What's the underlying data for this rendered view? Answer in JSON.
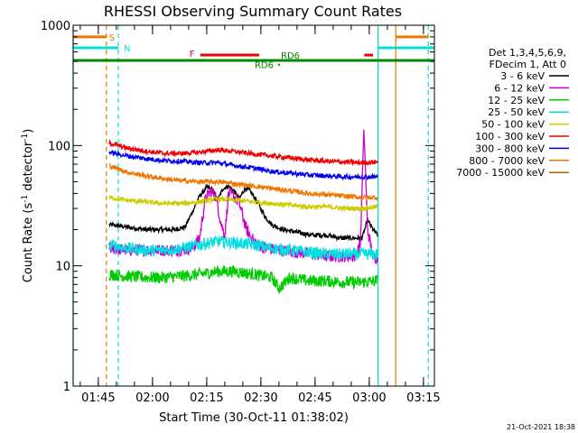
{
  "chart_data": {
    "type": "line",
    "title": "RHESSI Observing Summary Count Rates",
    "xlabel": "Start Time (30-Oct-11 01:38:02)",
    "ylabel_parts": [
      "Count Rate (s",
      "-1",
      " detector",
      "-1",
      ")"
    ],
    "y_scale": "log",
    "ylim": [
      1,
      1000
    ],
    "y_ticks": [
      {
        "value": 1,
        "label": "1"
      },
      {
        "value": 10,
        "label": "10"
      },
      {
        "value": 100,
        "label": "100"
      },
      {
        "value": 1000,
        "label": "1000"
      }
    ],
    "x_unit": "minutes after 01:38:02",
    "xlim": [
      0,
      100
    ],
    "x_ticks": [
      {
        "value": 6.97,
        "label": "01:45"
      },
      {
        "value": 21.97,
        "label": "02:00"
      },
      {
        "value": 36.97,
        "label": "02:15"
      },
      {
        "value": 51.97,
        "label": "02:30"
      },
      {
        "value": 66.97,
        "label": "02:45"
      },
      {
        "value": 81.97,
        "label": "03:00"
      },
      {
        "value": 96.97,
        "label": "03:15"
      }
    ],
    "footer_text": "21-Oct-2021 18:38",
    "legend": {
      "header": [
        "Det 1,3,4,5,6,9,",
        "FDecim 1, Att 0"
      ],
      "entries": [
        {
          "label": "3 - 6 keV",
          "color": "#000000"
        },
        {
          "label": "6 - 12 keV",
          "color": "#cc00cc"
        },
        {
          "label": "12 - 25 keV",
          "color": "#00cc00"
        },
        {
          "label": "25 - 50 keV",
          "color": "#00e0e0"
        },
        {
          "label": "50 - 100 keV",
          "color": "#cccc00"
        },
        {
          "label": "100 - 300 keV",
          "color": "#ee0000"
        },
        {
          "label": "300 - 800 keV",
          "color": "#0000ee"
        },
        {
          "label": "800 - 7000 keV",
          "color": "#ee7700"
        },
        {
          "label": "7000 - 15000 keV",
          "color": "#aa6600"
        }
      ]
    },
    "series": [
      {
        "name": "3 - 6 keV",
        "color": "#000000",
        "x": [
          10,
          15,
          20,
          25,
          28,
          31,
          33,
          35,
          37,
          38.5,
          40,
          41.5,
          43,
          44.5,
          46,
          47.5,
          49,
          51,
          53,
          55,
          58,
          62,
          66,
          70,
          74,
          78,
          80,
          81.5,
          83,
          84.3
        ],
        "y": [
          22,
          21,
          20,
          20,
          20,
          21,
          28,
          38,
          45,
          43,
          35,
          44,
          46,
          42,
          36,
          44,
          42,
          34,
          26,
          22,
          20,
          19,
          18,
          18,
          17,
          17,
          17,
          24,
          20,
          18
        ]
      },
      {
        "name": "6 - 12 keV",
        "color": "#cc00cc",
        "x": [
          10,
          15,
          20,
          25,
          30,
          33,
          35,
          36.5,
          38,
          39.5,
          41,
          42,
          43,
          44.5,
          46,
          48,
          50,
          53,
          57,
          62,
          66,
          70,
          74,
          78,
          79.5,
          80.5,
          81.5,
          83,
          84.3
        ],
        "y": [
          14,
          13.5,
          13.5,
          13.5,
          13.5,
          14,
          17,
          35,
          42,
          38,
          22,
          18,
          40,
          38,
          33,
          20,
          16,
          14,
          13.5,
          13,
          12.5,
          12,
          12,
          12,
          15,
          140,
          20,
          12,
          11.5
        ]
      },
      {
        "name": "12 - 25 keV",
        "color": "#00cc00",
        "x": [
          10,
          15,
          20,
          25,
          30,
          35,
          40,
          45,
          50,
          55,
          57,
          60,
          65,
          70,
          75,
          80,
          84.3
        ],
        "y": [
          8.5,
          8.2,
          8,
          8,
          8.2,
          8.5,
          9,
          9,
          8.5,
          8,
          6.5,
          8,
          7.5,
          7.5,
          7.3,
          7.3,
          7.5
        ]
      },
      {
        "name": "25 - 50 keV",
        "color": "#00e0e0",
        "x": [
          10,
          15,
          20,
          25,
          30,
          35,
          40,
          45,
          50,
          55,
          60,
          65,
          70,
          75,
          80,
          84.3
        ],
        "y": [
          15,
          14,
          13.5,
          13.5,
          14,
          15,
          16,
          15.5,
          15,
          14,
          13.5,
          13,
          12.5,
          12.5,
          12.5,
          12.5
        ]
      },
      {
        "name": "50 - 100 keV",
        "color": "#cccc00",
        "x": [
          10,
          15,
          20,
          25,
          30,
          35,
          40,
          45,
          50,
          55,
          60,
          65,
          70,
          75,
          80,
          84.3
        ],
        "y": [
          37,
          35,
          34,
          33,
          33,
          34,
          36,
          35,
          34,
          33,
          32,
          31,
          31,
          30,
          30,
          31
        ]
      },
      {
        "name": "100 - 300 keV",
        "color": "#ee0000",
        "x": [
          10,
          15,
          20,
          25,
          30,
          35,
          40,
          45,
          50,
          55,
          60,
          65,
          70,
          75,
          80,
          84.3
        ],
        "y": [
          105,
          95,
          90,
          86,
          86,
          88,
          92,
          89,
          85,
          82,
          79,
          76,
          74,
          73,
          72,
          73
        ]
      },
      {
        "name": "300 - 800 keV",
        "color": "#0000ee",
        "x": [
          10,
          15,
          20,
          25,
          30,
          35,
          40,
          45,
          50,
          55,
          60,
          65,
          70,
          75,
          80,
          84.3
        ],
        "y": [
          88,
          82,
          78,
          75,
          74,
          72,
          72,
          68,
          65,
          61,
          59,
          57,
          56,
          55,
          55,
          55
        ]
      },
      {
        "name": "800 - 7000 keV",
        "color": "#ee7700",
        "x": [
          10,
          15,
          20,
          25,
          30,
          35,
          40,
          45,
          50,
          55,
          60,
          65,
          70,
          75,
          80,
          84.3
        ],
        "y": [
          68,
          60,
          56,
          53,
          51,
          50,
          50,
          48,
          46,
          44,
          42,
          40,
          39,
          38,
          37,
          37
        ]
      }
    ],
    "vertical_lines": [
      {
        "x": 0,
        "color": "#00e0e0",
        "style": "solid"
      },
      {
        "x": 9.2,
        "color": "#ee7700",
        "style": "dashed"
      },
      {
        "x": 12.5,
        "color": "#00e0e0",
        "style": "dashed"
      },
      {
        "x": 84.4,
        "color": "#00e0e0",
        "style": "solid"
      },
      {
        "x": 89.3,
        "color": "#ee7700",
        "style": "solid"
      },
      {
        "x": 98.3,
        "color": "#00e0e0",
        "style": "dashed"
      }
    ],
    "status_bars": [
      {
        "label": "S",
        "color": "#ee7700",
        "segments": [
          [
            0,
            9.2
          ],
          [
            89.3,
            98.3
          ]
        ],
        "y": 800
      },
      {
        "label": "N",
        "color": "#00e0e0",
        "segments": [
          [
            0,
            12.5
          ],
          [
            84.4,
            100
          ]
        ],
        "y": 650
      },
      {
        "label": "F",
        "color": "#ee0000",
        "segments": [
          [
            35.2,
            51.5
          ],
          [
            80.6,
            83.0
          ]
        ],
        "y": 565
      },
      {
        "label": "RD6",
        "color": "#008800",
        "segments": [
          [
            0,
            100
          ]
        ],
        "y": 510
      }
    ],
    "markers": [
      {
        "label": "RD6",
        "color": "#008800",
        "x": 57,
        "y": 470
      }
    ]
  }
}
